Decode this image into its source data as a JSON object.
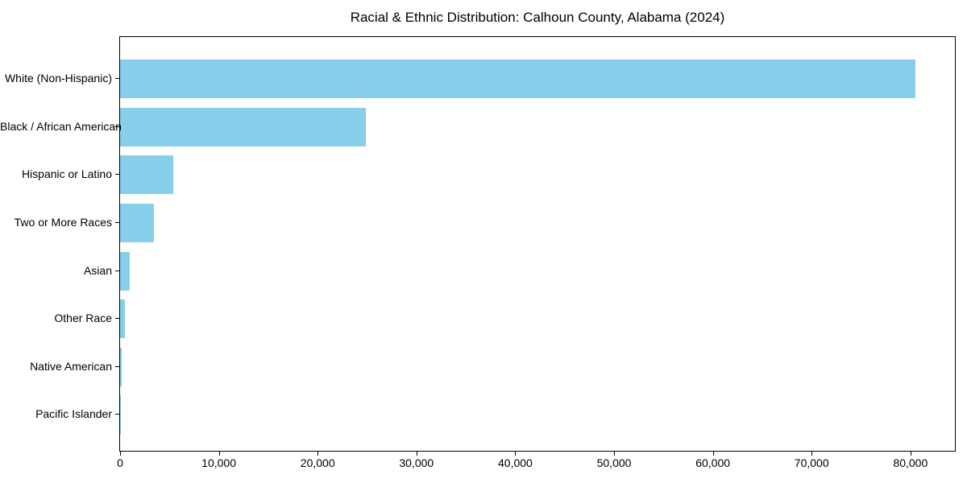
{
  "chart_data": {
    "type": "bar",
    "orientation": "horizontal",
    "title": "Racial & Ethnic Distribution: Calhoun County, Alabama (2024)",
    "categories": [
      "White (Non-Hispanic)",
      "Black / African American",
      "Hispanic or Latino",
      "Two or More Races",
      "Asian",
      "Other Race",
      "Native American",
      "Pacific Islander"
    ],
    "values": [
      80500,
      24900,
      5400,
      3450,
      950,
      450,
      200,
      60
    ],
    "xlabel": "",
    "ylabel": "",
    "xlim": [
      0,
      84500
    ],
    "x_ticks": [
      0,
      10000,
      20000,
      30000,
      40000,
      50000,
      60000,
      70000,
      80000
    ],
    "x_tick_labels": [
      "0",
      "10,000",
      "20,000",
      "30,000",
      "40,000",
      "50,000",
      "60,000",
      "70,000",
      "80,000"
    ],
    "bar_color": "#87CEEB",
    "grid": false,
    "legend": false
  }
}
